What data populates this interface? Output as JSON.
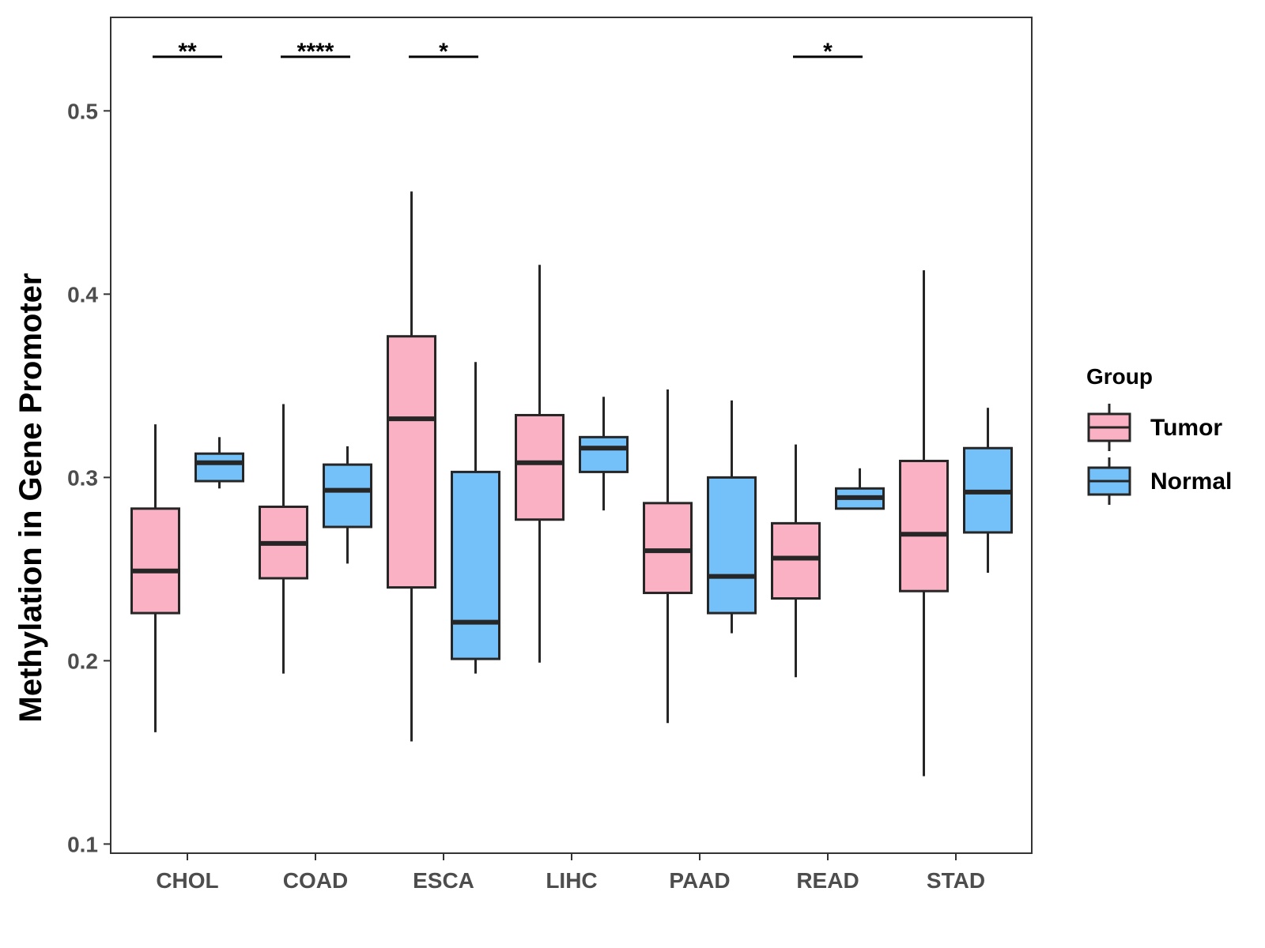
{
  "chart_data": {
    "type": "boxplot",
    "title": "",
    "xlabel": "",
    "ylabel": "Methylation in Gene Promoter",
    "ylim": [
      0.095,
      0.551
    ],
    "yticks": [
      0.1,
      0.2,
      0.3,
      0.4,
      0.5
    ],
    "ytick_labels": [
      "0.1",
      "0.2",
      "0.3",
      "0.4",
      "0.5"
    ],
    "grid": false,
    "categories": [
      "CHOL",
      "COAD",
      "ESCA",
      "LIHC",
      "PAAD",
      "READ",
      "STAD"
    ],
    "series": [
      {
        "name": "Tumor",
        "color": "#FBB1C4",
        "boxes": [
          {
            "min": 0.161,
            "q1": 0.226,
            "median": 0.249,
            "q3": 0.283,
            "max": 0.329
          },
          {
            "min": 0.193,
            "q1": 0.245,
            "median": 0.264,
            "q3": 0.284,
            "max": 0.34
          },
          {
            "min": 0.156,
            "q1": 0.24,
            "median": 0.332,
            "q3": 0.377,
            "max": 0.456
          },
          {
            "min": 0.199,
            "q1": 0.277,
            "median": 0.308,
            "q3": 0.334,
            "max": 0.416
          },
          {
            "min": 0.166,
            "q1": 0.237,
            "median": 0.26,
            "q3": 0.286,
            "max": 0.348
          },
          {
            "min": 0.191,
            "q1": 0.234,
            "median": 0.256,
            "q3": 0.275,
            "max": 0.318
          },
          {
            "min": 0.137,
            "q1": 0.238,
            "median": 0.269,
            "q3": 0.309,
            "max": 0.413
          }
        ]
      },
      {
        "name": "Normal",
        "color": "#74C0F8",
        "boxes": [
          {
            "min": 0.294,
            "q1": 0.298,
            "median": 0.308,
            "q3": 0.313,
            "max": 0.322
          },
          {
            "min": 0.253,
            "q1": 0.273,
            "median": 0.293,
            "q3": 0.307,
            "max": 0.317
          },
          {
            "min": 0.193,
            "q1": 0.201,
            "median": 0.221,
            "q3": 0.303,
            "max": 0.363
          },
          {
            "min": 0.282,
            "q1": 0.303,
            "median": 0.316,
            "q3": 0.322,
            "max": 0.344
          },
          {
            "min": 0.215,
            "q1": 0.226,
            "median": 0.246,
            "q3": 0.3,
            "max": 0.342
          },
          {
            "min": 0.283,
            "q1": 0.283,
            "median": 0.289,
            "q3": 0.294,
            "max": 0.305
          },
          {
            "min": 0.248,
            "q1": 0.27,
            "median": 0.292,
            "q3": 0.316,
            "max": 0.338
          }
        ]
      }
    ],
    "significance": [
      {
        "category": "CHOL",
        "label": "**",
        "y": 0.5295
      },
      {
        "category": "COAD",
        "label": "****",
        "y": 0.5295
      },
      {
        "category": "ESCA",
        "label": "*",
        "y": 0.5295
      },
      {
        "category": "READ",
        "label": "*",
        "y": 0.5295
      }
    ],
    "legend": {
      "title": "Group",
      "position": "right",
      "entries": [
        "Tumor",
        "Normal"
      ]
    }
  }
}
